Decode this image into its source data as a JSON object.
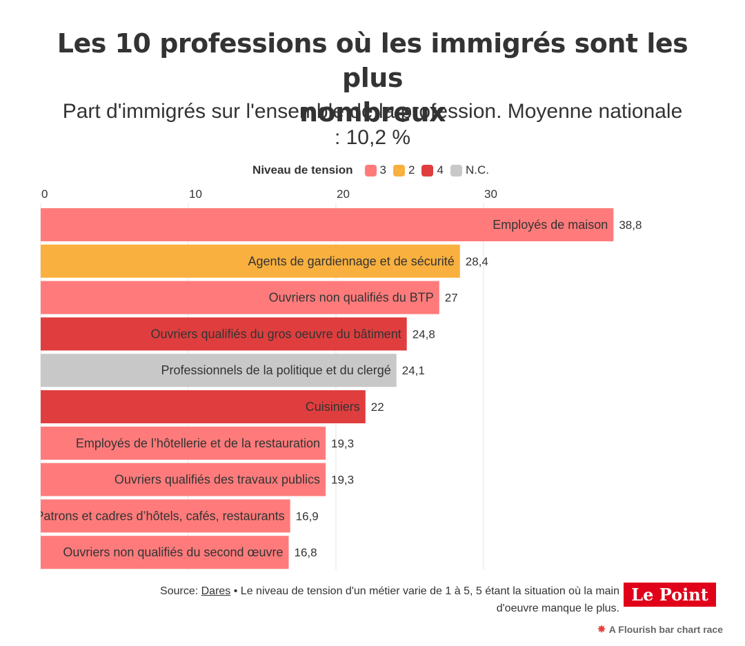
{
  "header": {
    "title_line1": "Les 10 professions où les immigrés sont les plus",
    "title_line2": "nombreux",
    "subtitle_line1": "Part d'immigrés sur l'ensemble de la profession. Moyenne nationale",
    "subtitle_line2": ": 10,2 %"
  },
  "legend": {
    "title": "Niveau de tension",
    "items": [
      {
        "label": "3",
        "color": "#ff7b7b"
      },
      {
        "label": "2",
        "color": "#f9b03e"
      },
      {
        "label": "4",
        "color": "#e03e3e"
      },
      {
        "label": "N.C.",
        "color": "#c8c8c8"
      }
    ]
  },
  "chart_data": {
    "type": "bar",
    "orientation": "horizontal",
    "title": "Les 10 professions où les immigrés sont les plus nombreux",
    "subtitle": "Part d'immigrés sur l'ensemble de la profession. Moyenne nationale : 10,2 %",
    "xlim": [
      0,
      38.8
    ],
    "x_ticks": [
      "0",
      "10",
      "20",
      "30"
    ],
    "x_tick_values": [
      0,
      10,
      20,
      30
    ],
    "grid": true,
    "bars": [
      {
        "label": "Employés de maison",
        "value": 38.8,
        "value_label": "38,8",
        "tension": "3",
        "color": "#ff7b7b"
      },
      {
        "label": "Agents de gardiennage et de sécurité",
        "value": 28.4,
        "value_label": "28,4",
        "tension": "2",
        "color": "#f9b03e"
      },
      {
        "label": "Ouvriers non qualifiés du BTP",
        "value": 27,
        "value_label": "27",
        "tension": "3",
        "color": "#ff7b7b"
      },
      {
        "label": "Ouvriers qualifiés du gros oeuvre du bâtiment",
        "value": 24.8,
        "value_label": "24,8",
        "tension": "4",
        "color": "#e03e3e"
      },
      {
        "label": "Professionnels de la politique et du clergé",
        "value": 24.1,
        "value_label": "24,1",
        "tension": "N.C.",
        "color": "#c8c8c8"
      },
      {
        "label": "Cuisiniers",
        "value": 22,
        "value_label": "22",
        "tension": "4",
        "color": "#e03e3e"
      },
      {
        "label": "Employés de l’hôtellerie et de la restauration",
        "value": 19.3,
        "value_label": "19,3",
        "tension": "3",
        "color": "#ff7b7b"
      },
      {
        "label": "Ouvriers qualifiés des travaux publics",
        "value": 19.3,
        "value_label": "19,3",
        "tension": "3",
        "color": "#ff7b7b"
      },
      {
        "label": "Patrons et cadres d’hôtels, cafés, restaurants",
        "value": 16.9,
        "value_label": "16,9",
        "tension": "3",
        "color": "#ff7b7b"
      },
      {
        "label": "Ouvriers non qualifiés du second œuvre",
        "value": 16.8,
        "value_label": "16,8",
        "tension": "3",
        "color": "#ff7b7b"
      }
    ]
  },
  "footer": {
    "source_prefix": "Source: ",
    "source_link": "Dares",
    "note": " • Le niveau de tension d'un métier varie de 1 à 5, 5 étant la situation où la main",
    "note_line2": "d'oeuvre manque le plus.",
    "logo": "Le Point",
    "credit": "A Flourish bar chart race"
  }
}
